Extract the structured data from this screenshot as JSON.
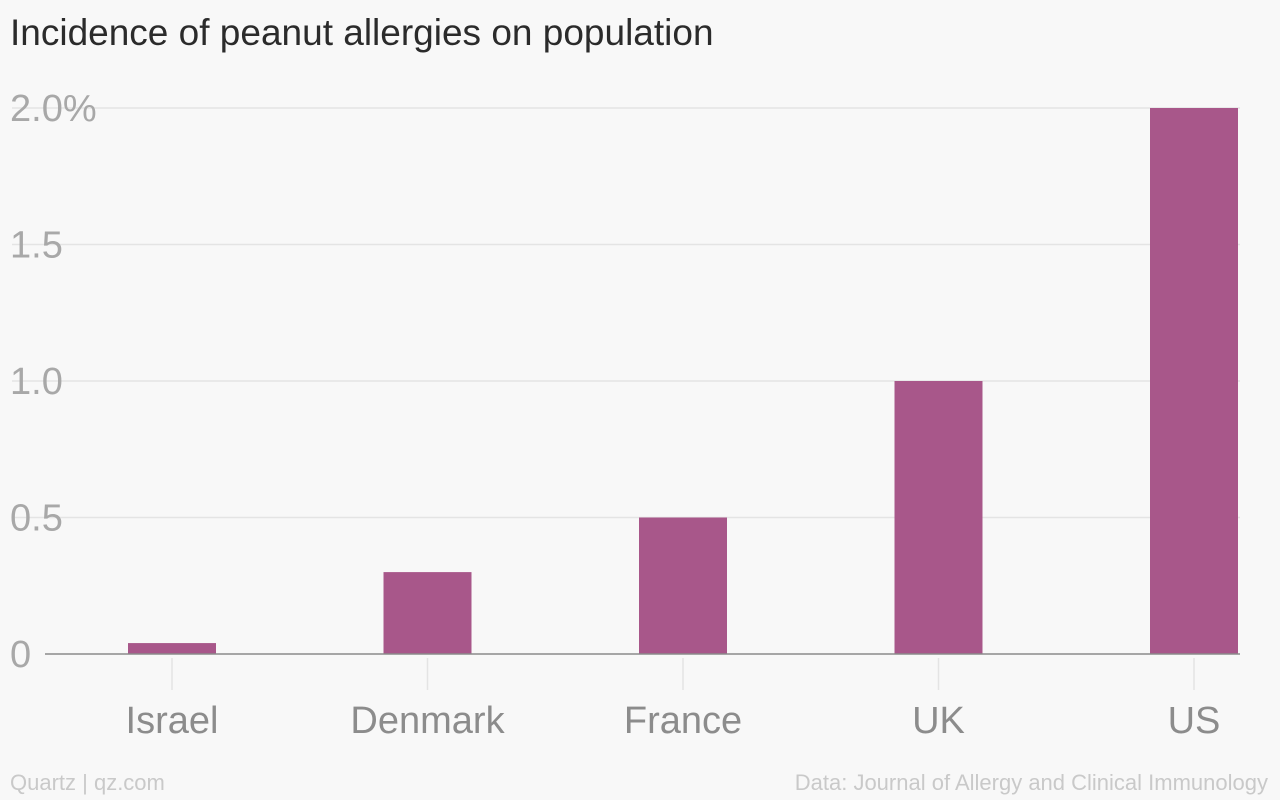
{
  "chart_data": {
    "type": "bar",
    "title": "Incidence of peanut allergies on population",
    "categories": [
      "Israel",
      "Denmark",
      "France",
      "UK",
      "US"
    ],
    "values": [
      0.04,
      0.3,
      0.5,
      1.0,
      2.0
    ],
    "ylim": [
      0,
      2.0
    ],
    "yticks": [
      0,
      0.5,
      1.0,
      1.5,
      2.0
    ],
    "ytick_labels": [
      "0",
      "0.5",
      "1.0",
      "1.5",
      "2.0%"
    ],
    "xlabel": "",
    "ylabel": "",
    "grid": true,
    "bar_color": "#a8578a"
  },
  "footer": {
    "left": "Quartz | qz.com",
    "right": "Data: Journal of Allergy and Clinical Immunology"
  }
}
